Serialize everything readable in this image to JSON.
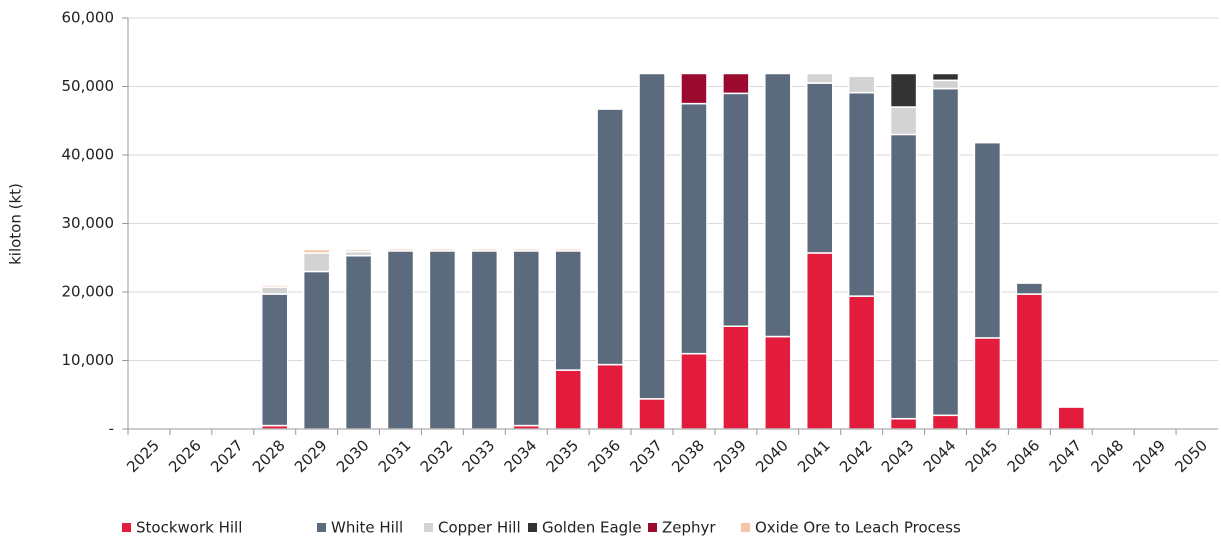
{
  "chart_data": {
    "type": "stacked_bar",
    "y_label": "kiloton (kt)",
    "categories": [
      "2025",
      "2026",
      "2027",
      "2028",
      "2029",
      "2030",
      "2031",
      "2032",
      "2033",
      "2034",
      "2035",
      "2036",
      "2037",
      "2038",
      "2039",
      "2040",
      "2041",
      "2042",
      "2043",
      "2044",
      "2045",
      "2046",
      "2047",
      "2048",
      "2049",
      "2050"
    ],
    "series": [
      {
        "name": "Stockwork Hill",
        "color": "#e31c3d",
        "values": [
          0,
          0,
          0,
          500,
          0,
          0,
          0,
          0,
          0,
          500,
          8600,
          9400,
          4400,
          11000,
          15000,
          13500,
          25700,
          19400,
          1500,
          2000,
          13300,
          19700,
          3200,
          0,
          0,
          0
        ]
      },
      {
        "name": "White Hill",
        "color": "#5b6b7d",
        "values": [
          0,
          0,
          0,
          19200,
          23000,
          25300,
          26000,
          26000,
          26000,
          25500,
          17400,
          37300,
          47500,
          36500,
          34000,
          38400,
          24800,
          29700,
          41500,
          47700,
          28500,
          1600,
          0,
          0,
          0,
          0
        ]
      },
      {
        "name": "Copper Hill",
        "color": "#d3d3d3",
        "values": [
          0,
          0,
          0,
          1000,
          2700,
          600,
          0,
          0,
          0,
          0,
          0,
          0,
          0,
          0,
          0,
          0,
          1400,
          2400,
          4000,
          1200,
          0,
          0,
          0,
          0,
          0,
          0
        ]
      },
      {
        "name": "Golden Eagle",
        "color": "#333333",
        "values": [
          0,
          0,
          0,
          0,
          0,
          0,
          0,
          0,
          0,
          0,
          0,
          0,
          0,
          0,
          0,
          0,
          0,
          0,
          4900,
          1000,
          0,
          0,
          0,
          0,
          0,
          0
        ]
      },
      {
        "name": "Zephyr",
        "color": "#9b0a2e",
        "values": [
          0,
          0,
          0,
          0,
          0,
          0,
          0,
          0,
          0,
          0,
          0,
          0,
          0,
          4400,
          2900,
          0,
          0,
          0,
          0,
          0,
          0,
          0,
          0,
          0,
          0,
          0
        ]
      },
      {
        "name": "Oxide Ore to Leach Process",
        "color": "#f7c4a8",
        "values": [
          0,
          0,
          0,
          300,
          500,
          300,
          300,
          300,
          300,
          300,
          300,
          0,
          0,
          0,
          0,
          0,
          0,
          0,
          0,
          0,
          0,
          0,
          0,
          0,
          0,
          0
        ]
      }
    ],
    "ylim": [
      0,
      60000
    ],
    "yticks": [
      {
        "value": 0,
        "label": "-"
      },
      {
        "value": 10000,
        "label": "10,000"
      },
      {
        "value": 20000,
        "label": "20,000"
      },
      {
        "value": 30000,
        "label": "30,000"
      },
      {
        "value": 40000,
        "label": "40,000"
      },
      {
        "value": 50000,
        "label": "50,000"
      },
      {
        "value": 60000,
        "label": "60,000"
      }
    ],
    "grid": true,
    "legend": "bottom"
  }
}
